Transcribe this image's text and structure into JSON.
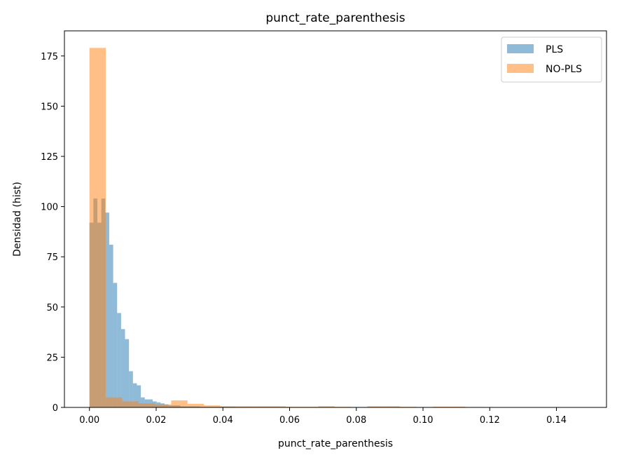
{
  "chart_data": {
    "type": "histogram",
    "title": "punct_rate_parenthesis",
    "xlabel": "punct_rate_parenthesis",
    "ylabel": "Densidad (hist)",
    "xlim": [
      -0.0075,
      0.155
    ],
    "ylim": [
      0,
      187.5
    ],
    "xticks": [
      0.0,
      0.02,
      0.04,
      0.06,
      0.08,
      0.1,
      0.12,
      0.14
    ],
    "xtick_labels": [
      "0.00",
      "0.02",
      "0.04",
      "0.06",
      "0.08",
      "0.10",
      "0.12",
      "0.14"
    ],
    "yticks": [
      0,
      25,
      50,
      75,
      100,
      125,
      150,
      175
    ],
    "ytick_labels": [
      "0",
      "25",
      "50",
      "75",
      "100",
      "125",
      "150",
      "175"
    ],
    "grid": false,
    "legend_position": "top-right",
    "series": [
      {
        "name": "PLS",
        "color": "#1f77b4",
        "alpha": 0.5,
        "bin_start": 0.0,
        "bin_width": 0.001185,
        "values": [
          92,
          104,
          92,
          104,
          97,
          81,
          62,
          47,
          39,
          34,
          18,
          12,
          11,
          5,
          4,
          4,
          3,
          2.5,
          2,
          1.5,
          1,
          1,
          1,
          0.5,
          0.5,
          0.5,
          0.5,
          0.5,
          0.3,
          0.3,
          0.3,
          0.3,
          0.3,
          0.3,
          0.3,
          0.3,
          0.3,
          0.2,
          0.2,
          0.2,
          0.2,
          0.2,
          0.2,
          0.2,
          0.2,
          0.2,
          0.2,
          0.2,
          0.2,
          0.2,
          0.2,
          0.2,
          0.2,
          0.2,
          0.2,
          0.2,
          0.2,
          0.2,
          0.2,
          0.2,
          0.2,
          0.2,
          0.2,
          0.2,
          0.2,
          0.2,
          0.2,
          0.2,
          0.2,
          0.2,
          0.2,
          0.2,
          0.2,
          0.2,
          0.2,
          0.2,
          0.2,
          0.2,
          0.2,
          0.2,
          0.2,
          0.2,
          0.2,
          0.2,
          0.2,
          0.2,
          0.2,
          0.2,
          0.2,
          0.2,
          0.2,
          0.2,
          0.2,
          0.2,
          0.2,
          0.2,
          0.2,
          0.2,
          0.2,
          0.2,
          0.1,
          0.1,
          0.1,
          0.1,
          0.1,
          0.1,
          0.1,
          0.1,
          0.1,
          0.1,
          0.1,
          0.1,
          0.1,
          0.1,
          0.1,
          0.1,
          0.1,
          0.1,
          0.1,
          0.1,
          0.1,
          0.1,
          0.1,
          0.1,
          0.1
        ]
      },
      {
        "name": "NO-PLS",
        "color": "#ff7f0e",
        "alpha": 0.5,
        "bin_start": 0.0,
        "bin_width": 0.0049,
        "values": [
          179,
          5,
          3,
          2,
          1.5,
          3.5,
          1.8,
          1,
          0.6,
          0.6,
          0.6,
          0.6,
          0.3,
          0.3,
          0.6,
          0.3,
          0,
          0.6,
          0.6,
          0.3,
          0,
          0.4,
          0.4
        ]
      }
    ]
  }
}
